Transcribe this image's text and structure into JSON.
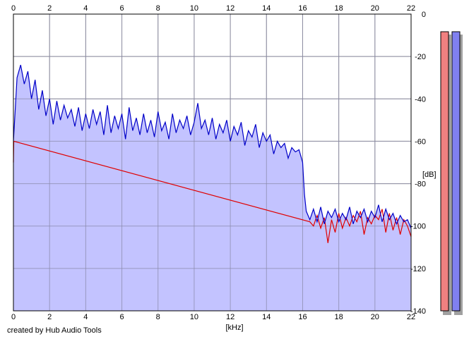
{
  "credit": "created by Hub Audio Tools",
  "chart_data": {
    "type": "area",
    "xlabel": "[kHz]",
    "ylabel": "[dB]",
    "xlim": [
      0,
      22
    ],
    "ylim": [
      -140,
      0
    ],
    "x_ticks": [
      "0",
      "2",
      "4",
      "6",
      "8",
      "10",
      "12",
      "14",
      "16",
      "18",
      "20",
      "22"
    ],
    "y_ticks": [
      "0",
      "-20",
      "-40",
      "-60",
      "-80",
      "-100",
      "-120",
      "-140"
    ],
    "grid": true,
    "fill_color": "#c0c0ff",
    "series": [
      {
        "color": "#0000c8",
        "x": [
          0.0,
          0.2,
          0.4,
          0.6,
          0.8,
          1.0,
          1.2,
          1.4,
          1.6,
          1.8,
          2.0,
          2.2,
          2.4,
          2.6,
          2.8,
          3.0,
          3.2,
          3.4,
          3.6,
          3.8,
          4.0,
          4.2,
          4.4,
          4.6,
          4.8,
          5.0,
          5.2,
          5.4,
          5.6,
          5.8,
          6.0,
          6.2,
          6.4,
          6.6,
          6.8,
          7.0,
          7.2,
          7.4,
          7.6,
          7.8,
          8.0,
          8.2,
          8.4,
          8.6,
          8.8,
          9.0,
          9.2,
          9.4,
          9.6,
          9.8,
          10.0,
          10.2,
          10.4,
          10.6,
          10.8,
          11.0,
          11.2,
          11.4,
          11.6,
          11.8,
          12.0,
          12.2,
          12.4,
          12.6,
          12.8,
          13.0,
          13.2,
          13.4,
          13.6,
          13.8,
          14.0,
          14.2,
          14.4,
          14.6,
          14.8,
          15.0,
          15.2,
          15.4,
          15.6,
          15.8,
          16.0,
          16.1,
          16.2,
          16.4,
          16.6,
          16.8,
          17.0,
          17.2,
          17.4,
          17.6,
          17.8,
          18.0,
          18.2,
          18.4,
          18.6,
          18.8,
          19.0,
          19.2,
          19.4,
          19.6,
          19.8,
          20.0,
          20.2,
          20.4,
          20.6,
          20.8,
          21.0,
          21.2,
          21.4,
          21.6,
          21.8,
          22.0
        ],
        "y": [
          -60,
          -30,
          -24,
          -33,
          -27,
          -40,
          -31,
          -45,
          -36,
          -48,
          -40,
          -52,
          -41,
          -50,
          -43,
          -49,
          -45,
          -53,
          -44,
          -55,
          -47,
          -54,
          -45,
          -52,
          -46,
          -57,
          -43,
          -56,
          -48,
          -54,
          -47,
          -59,
          -44,
          -55,
          -49,
          -57,
          -47,
          -56,
          -50,
          -58,
          -46,
          -55,
          -51,
          -59,
          -47,
          -56,
          -50,
          -54,
          -48,
          -57,
          -51,
          -42,
          -54,
          -50,
          -57,
          -49,
          -59,
          -52,
          -56,
          -50,
          -60,
          -53,
          -57,
          -51,
          -62,
          -55,
          -58,
          -52,
          -63,
          -56,
          -60,
          -57,
          -66,
          -60,
          -63,
          -61,
          -68,
          -63,
          -65,
          -64,
          -70,
          -85,
          -93,
          -97,
          -92,
          -98,
          -91,
          -99,
          -93,
          -96,
          -92,
          -98,
          -94,
          -97,
          -91,
          -99,
          -93,
          -96,
          -92,
          -98,
          -93,
          -96,
          -90,
          -98,
          -92,
          -97,
          -94,
          -99,
          -95,
          -98,
          -97,
          -101
        ]
      },
      {
        "color": "#e00000",
        "x": [
          0.0,
          0.02,
          16.4,
          16.6,
          16.8,
          17.0,
          17.2,
          17.4,
          17.6,
          17.8,
          18.0,
          18.2,
          18.4,
          18.6,
          18.8,
          19.0,
          19.2,
          19.4,
          19.6,
          19.8,
          20.0,
          20.2,
          20.4,
          20.6,
          20.8,
          21.0,
          21.2,
          21.4,
          21.6,
          21.8,
          22.0
        ],
        "y": [
          -70,
          -60,
          -98,
          -100,
          -95,
          -101,
          -96,
          -108,
          -97,
          -103,
          -94,
          -101,
          -96,
          -100,
          -95,
          -98,
          -93,
          -104,
          -96,
          -99,
          -95,
          -97,
          -92,
          -103,
          -94,
          -102,
          -96,
          -104,
          -97,
          -100,
          -105
        ]
      }
    ]
  },
  "meters": {
    "left_color": "#f08080",
    "right_color": "#8080f0"
  }
}
